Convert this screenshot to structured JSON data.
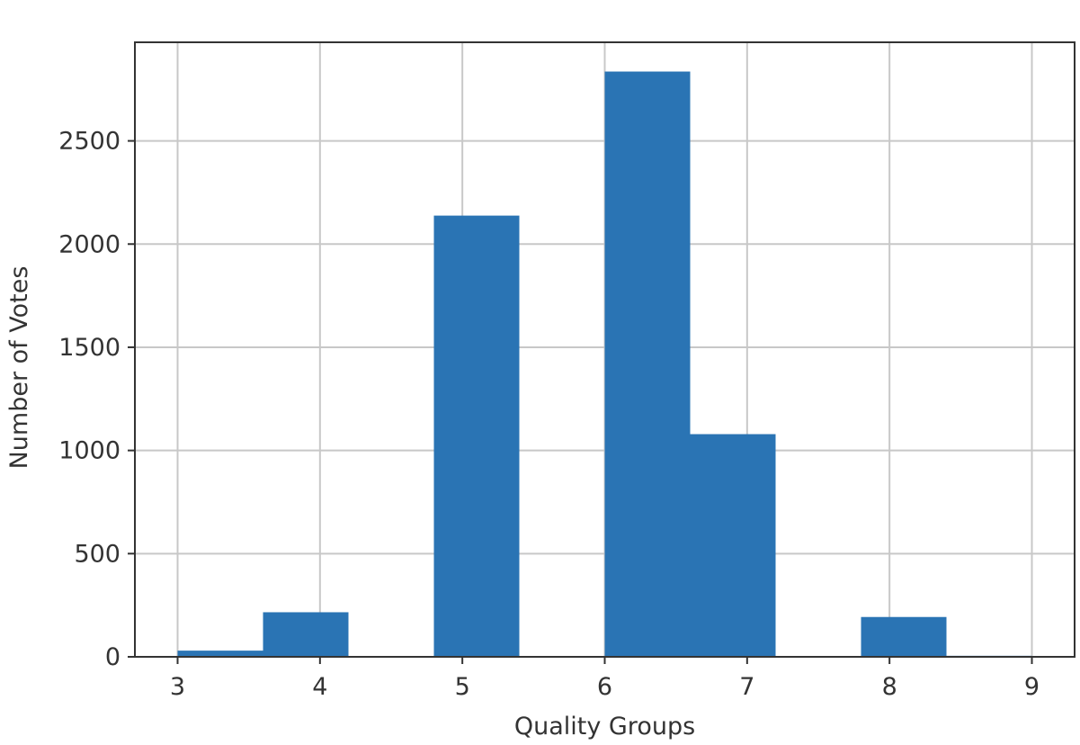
{
  "chart_data": {
    "type": "bar",
    "title": "",
    "xlabel": "Quality Groups",
    "ylabel": "Number of Votes",
    "bins": [
      {
        "start": 3.0,
        "end": 3.6,
        "count": 30
      },
      {
        "start": 3.6,
        "end": 4.2,
        "count": 216
      },
      {
        "start": 4.2,
        "end": 4.8,
        "count": 0
      },
      {
        "start": 4.8,
        "end": 5.4,
        "count": 2138
      },
      {
        "start": 5.4,
        "end": 6.0,
        "count": 0
      },
      {
        "start": 6.0,
        "end": 6.6,
        "count": 2836
      },
      {
        "start": 6.6,
        "end": 7.2,
        "count": 1079
      },
      {
        "start": 7.2,
        "end": 7.8,
        "count": 0
      },
      {
        "start": 7.8,
        "end": 8.4,
        "count": 193
      },
      {
        "start": 8.4,
        "end": 9.0,
        "count": 5
      }
    ],
    "xlim": [
      2.7,
      9.3
    ],
    "ylim": [
      0,
      2977.8
    ],
    "xticks": [
      "3",
      "4",
      "5",
      "6",
      "7",
      "8",
      "9"
    ],
    "yticks": [
      "0",
      "500",
      "1000",
      "1500",
      "2000",
      "2500"
    ],
    "grid": true,
    "legend": "none",
    "bar_color": "#2a74b4",
    "grid_color": "#c8c8c8",
    "axis_color": "#333333"
  }
}
